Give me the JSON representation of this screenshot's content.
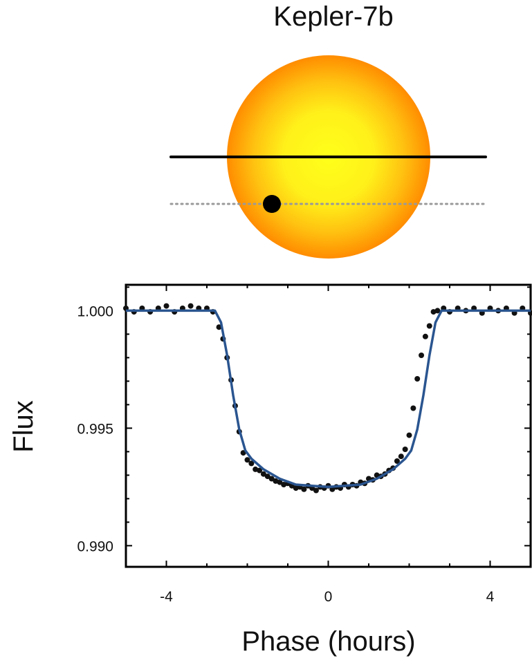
{
  "chart_data": {
    "type": "scatter",
    "title": "Kepler-7b",
    "xlabel": "Phase (hours)",
    "ylabel": "Flux",
    "xlim": [
      -5.0,
      5.0
    ],
    "ylim": [
      0.9891,
      1.0011
    ],
    "x_ticks": [
      -4,
      0,
      4
    ],
    "x_tick_labels": [
      "-4",
      "0",
      "4"
    ],
    "y_ticks": [
      1.0,
      0.995,
      0.99
    ],
    "y_tick_labels": [
      "1.000",
      "0.995",
      "0.990"
    ],
    "grid": false,
    "colors": {
      "points": "#111111",
      "model": "#2a5590",
      "star_center": "#ffff1a",
      "star_edge": "#ff8c00",
      "transit_chord": "#000000",
      "dotted_chord": "#999999",
      "planet": "#000000"
    },
    "series": [
      {
        "kind": "points",
        "x": [
          -5.0,
          -4.8,
          -4.6,
          -4.4,
          -4.2,
          -4.0,
          -3.8,
          -3.6,
          -3.4,
          -3.2,
          -3.0,
          -2.85,
          -2.7,
          -2.6,
          -2.5,
          -2.4,
          -2.3,
          -2.2,
          -2.1,
          -2.0,
          -1.9,
          -1.8,
          -1.7,
          -1.6,
          -1.5,
          -1.4,
          -1.3,
          -1.2,
          -1.1,
          -1.0,
          -0.9,
          -0.8,
          -0.7,
          -0.6,
          -0.5,
          -0.4,
          -0.3,
          -0.2,
          -0.1,
          0.0,
          0.1,
          0.2,
          0.3,
          0.4,
          0.5,
          0.6,
          0.7,
          0.8,
          0.9,
          1.0,
          1.1,
          1.2,
          1.3,
          1.4,
          1.5,
          1.6,
          1.7,
          1.8,
          1.9,
          2.0,
          2.1,
          2.2,
          2.3,
          2.4,
          2.5,
          2.6,
          2.7,
          2.85,
          3.0,
          3.2,
          3.4,
          3.6,
          3.8,
          4.0,
          4.2,
          4.4,
          4.6,
          4.8,
          5.0
        ],
        "y": [
          1.0001,
          0.99995,
          1.0001,
          0.99995,
          1.0001,
          1.0002,
          0.99995,
          1.0001,
          1.0002,
          1.0001,
          1.0001,
          0.99995,
          0.9993,
          0.9988,
          0.998,
          0.99705,
          0.99595,
          0.99485,
          0.99395,
          0.99365,
          0.9935,
          0.99325,
          0.9932,
          0.99305,
          0.99295,
          0.99285,
          0.99275,
          0.9927,
          0.9926,
          0.99265,
          0.99255,
          0.99245,
          0.9925,
          0.9924,
          0.99255,
          0.99245,
          0.99235,
          0.9925,
          0.99245,
          0.99255,
          0.9924,
          0.9925,
          0.99245,
          0.9926,
          0.9925,
          0.9926,
          0.99255,
          0.9927,
          0.99265,
          0.99285,
          0.9928,
          0.993,
          0.99295,
          0.99305,
          0.9932,
          0.9933,
          0.9936,
          0.9938,
          0.9941,
          0.9947,
          0.99585,
          0.9971,
          0.9981,
          0.9989,
          0.99935,
          0.99995,
          1.0,
          1.0001,
          0.99995,
          1.0001,
          1.0,
          1.0001,
          0.9999,
          1.0001,
          1.0,
          1.0001,
          0.9999,
          1.0001,
          0.9999
        ]
      },
      {
        "kind": "model",
        "x": [
          -5.0,
          -2.8,
          -2.65,
          -2.5,
          -2.35,
          -2.2,
          -2.05,
          -1.9,
          -1.6,
          -1.2,
          -0.8,
          -0.4,
          0.0,
          0.4,
          0.8,
          1.2,
          1.6,
          1.9,
          2.05,
          2.2,
          2.35,
          2.5,
          2.65,
          2.8,
          5.0
        ],
        "y": [
          1.0,
          1.0,
          0.9995,
          0.9981,
          0.9964,
          0.99495,
          0.99405,
          0.9937,
          0.99325,
          0.99285,
          0.9926,
          0.99255,
          0.9925,
          0.99255,
          0.9926,
          0.99285,
          0.99325,
          0.9937,
          0.99405,
          0.99495,
          0.9964,
          0.9981,
          0.9995,
          1.0,
          1.0
        ]
      }
    ]
  }
}
